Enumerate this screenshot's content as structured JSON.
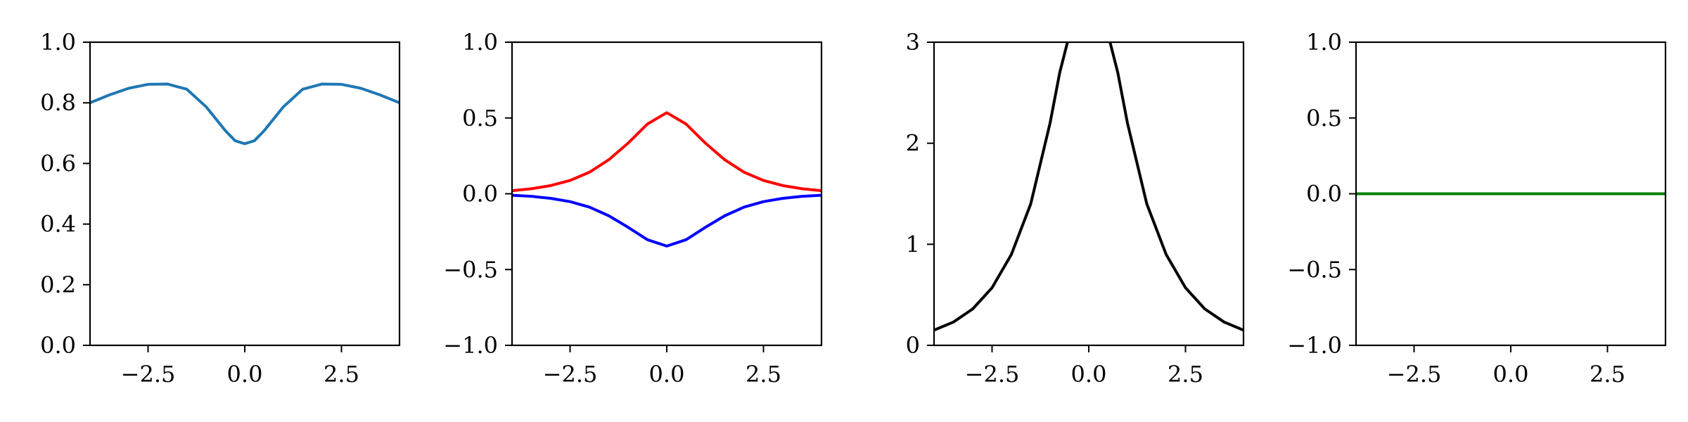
{
  "chart_data": [
    {
      "type": "line",
      "xlim": [
        -4,
        4
      ],
      "ylim": [
        0,
        1
      ],
      "xticks": [
        -2.5,
        0.0,
        2.5
      ],
      "xtick_labels": [
        "−2.5",
        "0.0",
        "2.5"
      ],
      "yticks": [
        0.0,
        0.2,
        0.4,
        0.6,
        0.8,
        1.0
      ],
      "ytick_labels": [
        "0.0",
        "0.2",
        "0.4",
        "0.6",
        "0.8",
        "1.0"
      ],
      "grid": false,
      "series": [
        {
          "color": "#1f77b4",
          "x": [
            -4.0,
            -3.5,
            -3.0,
            -2.5,
            -2.0,
            -1.5,
            -1.0,
            -0.5,
            -0.25,
            0.0,
            0.25,
            0.5,
            1.0,
            1.5,
            2.0,
            2.5,
            3.0,
            3.5,
            4.0
          ],
          "y": [
            0.8,
            0.826,
            0.848,
            0.861,
            0.862,
            0.845,
            0.787,
            0.708,
            0.675,
            0.665,
            0.675,
            0.708,
            0.787,
            0.845,
            0.862,
            0.861,
            0.848,
            0.826,
            0.8
          ]
        }
      ]
    },
    {
      "type": "line",
      "xlim": [
        -4,
        4
      ],
      "ylim": [
        -1,
        1
      ],
      "xticks": [
        -2.5,
        0.0,
        2.5
      ],
      "xtick_labels": [
        "−2.5",
        "0.0",
        "2.5"
      ],
      "yticks": [
        -1.0,
        -0.5,
        0.0,
        0.5,
        1.0
      ],
      "ytick_labels": [
        "−1.0",
        "−0.5",
        "0.0",
        "0.5",
        "1.0"
      ],
      "grid": false,
      "series": [
        {
          "color": "#ff0000",
          "x": [
            -4.0,
            -3.5,
            -3.0,
            -2.5,
            -2.0,
            -1.5,
            -1.0,
            -0.5,
            0.0,
            0.5,
            1.0,
            1.5,
            2.0,
            2.5,
            3.0,
            3.5,
            4.0
          ],
          "y": [
            0.02,
            0.033,
            0.054,
            0.088,
            0.142,
            0.224,
            0.334,
            0.46,
            0.535,
            0.46,
            0.334,
            0.224,
            0.142,
            0.088,
            0.054,
            0.033,
            0.02
          ]
        },
        {
          "color": "#0000ff",
          "x": [
            -4.0,
            -3.5,
            -3.0,
            -2.5,
            -2.0,
            -1.5,
            -1.0,
            -0.5,
            0.0,
            0.5,
            1.0,
            1.5,
            2.0,
            2.5,
            3.0,
            3.5,
            4.0
          ],
          "y": [
            -0.01,
            -0.017,
            -0.03,
            -0.052,
            -0.088,
            -0.145,
            -0.221,
            -0.303,
            -0.345,
            -0.303,
            -0.221,
            -0.145,
            -0.088,
            -0.052,
            -0.03,
            -0.017,
            -0.01
          ]
        }
      ]
    },
    {
      "type": "line",
      "xlim": [
        -4,
        4
      ],
      "ylim": [
        0,
        3
      ],
      "xticks": [
        -2.5,
        0.0,
        2.5
      ],
      "xtick_labels": [
        "−2.5",
        "0.0",
        "2.5"
      ],
      "yticks": [
        0,
        1,
        2,
        3
      ],
      "ytick_labels": [
        "0",
        "1",
        "2",
        "3"
      ],
      "grid": false,
      "series": [
        {
          "color": "#000000",
          "segments": [
            {
              "x": [
                -4.0,
                -3.5,
                -3.0,
                -2.5,
                -2.0,
                -1.5,
                -1.0,
                -0.75,
                -0.55
              ],
              "y": [
                0.15,
                0.23,
                0.36,
                0.57,
                0.9,
                1.4,
                2.2,
                2.7,
                3.0
              ]
            },
            {
              "x": [
                0.55,
                0.75,
                1.0,
                1.5,
                2.0,
                2.5,
                3.0,
                3.5,
                4.0
              ],
              "y": [
                3.0,
                2.7,
                2.2,
                1.4,
                0.9,
                0.57,
                0.36,
                0.23,
                0.15
              ]
            }
          ]
        }
      ]
    },
    {
      "type": "line",
      "xlim": [
        -4,
        4
      ],
      "ylim": [
        -1,
        1
      ],
      "xticks": [
        -2.5,
        0.0,
        2.5
      ],
      "xtick_labels": [
        "−2.5",
        "0.0",
        "2.5"
      ],
      "yticks": [
        -1.0,
        -0.5,
        0.0,
        0.5,
        1.0
      ],
      "ytick_labels": [
        "−1.0",
        "−0.5",
        "0.0",
        "0.5",
        "1.0"
      ],
      "grid": false,
      "series": [
        {
          "color": "#008000",
          "x": [
            -4.0,
            4.0
          ],
          "y": [
            0.0,
            0.0
          ]
        }
      ]
    }
  ]
}
